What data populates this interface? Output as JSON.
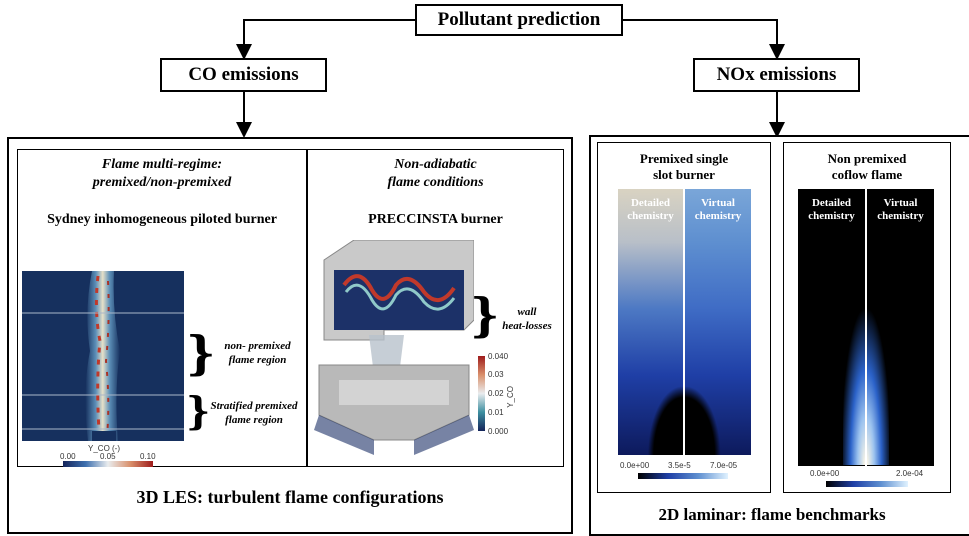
{
  "top": {
    "label": "Pollutant prediction"
  },
  "co": {
    "label": "CO emissions",
    "caption": "3D LES: turbulent flame configurations",
    "panel1": {
      "title_line1": "Flame multi-regime:",
      "title_line2": "premixed/non-premixed",
      "burner": "Sydney inhomogeneous piloted burner",
      "annot1_line1": "non- premixed",
      "annot1_line2": "flame region",
      "annot2_line1": "Stratified premixed",
      "annot2_line2": "flame region",
      "cbar_title": "Y_CO (-)",
      "cbar_ticks": [
        "0.00",
        "0.05",
        "0.10"
      ]
    },
    "panel2": {
      "title_line1": "Non-adiabatic",
      "title_line2": "flame conditions",
      "burner": "PRECCINSTA burner",
      "annot_line1": "wall",
      "annot_line2": "heat-losses",
      "cbar_title": "Y_CO",
      "cbar_ticks": [
        "0.040",
        "0.03",
        "0.02",
        "0.01",
        "0.000"
      ]
    }
  },
  "nox": {
    "label": "NOx emissions",
    "caption": "2D laminar: flame benchmarks",
    "panel1": {
      "title_line1": "Premixed single",
      "title_line2": "slot burner",
      "left_line1": "Detailed",
      "left_line2": "chemistry",
      "right_line1": "Virtual",
      "right_line2": "chemistry",
      "cbar_ticks": [
        "0.0e+00",
        "3.5e-5",
        "7.0e-05"
      ]
    },
    "panel2": {
      "title_line1": "Non premixed",
      "title_line2": "coflow flame",
      "left_line1": "Detailed",
      "left_line2": "chemistry",
      "right_line1": "Virtual",
      "right_line2": "chemistry",
      "cbar_ticks": [
        "0.0e+00",
        "2.0e-04"
      ]
    }
  }
}
